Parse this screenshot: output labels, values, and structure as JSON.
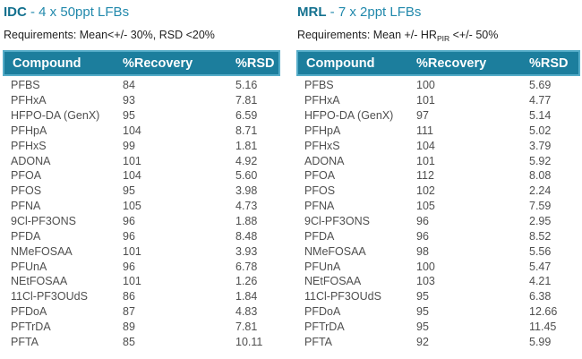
{
  "colors": {
    "header_bg": "#1C7E9D",
    "header_border": "#55ACC8",
    "header_text": "#FFFFFF",
    "title_accent": "#14718F",
    "title_rest": "#2289AC",
    "req_text": "#222222",
    "body_text": "#4F4F4F"
  },
  "columns": [
    "Compound",
    "%Recovery",
    "%RSD"
  ],
  "tables": [
    {
      "id": "idc",
      "title_acronym": "IDC",
      "title_rest": " - 4 x 50ppt LFBs",
      "requirements_pre": "Requirements: Mean<+/- 30%, RSD <20%",
      "requirements_sub": "",
      "requirements_post": "",
      "rows": [
        [
          "PFBS",
          "84",
          "5.16"
        ],
        [
          "PFHxA",
          "93",
          "7.81"
        ],
        [
          "HFPO-DA (GenX)",
          "95",
          "6.59"
        ],
        [
          "PFHpA",
          "104",
          "8.71"
        ],
        [
          "PFHxS",
          "99",
          "1.81"
        ],
        [
          "ADONA",
          "101",
          "4.92"
        ],
        [
          "PFOA",
          "104",
          "5.60"
        ],
        [
          "PFOS",
          "95",
          "3.98"
        ],
        [
          "PFNA",
          "105",
          "4.73"
        ],
        [
          "9Cl-PF3ONS",
          "96",
          "1.88"
        ],
        [
          "PFDA",
          "96",
          "8.48"
        ],
        [
          "NMeFOSAA",
          "101",
          "3.93"
        ],
        [
          "PFUnA",
          "96",
          "6.78"
        ],
        [
          "NEtFOSAA",
          "101",
          "1.26"
        ],
        [
          "11Cl-PF3OUdS",
          "86",
          "1.84"
        ],
        [
          "PFDoA",
          "87",
          "4.83"
        ],
        [
          "PFTrDA",
          "89",
          "7.81"
        ],
        [
          "PFTA",
          "85",
          "10.11"
        ]
      ]
    },
    {
      "id": "mrl",
      "title_acronym": "MRL",
      "title_rest": " - 7 x 2ppt LFBs",
      "requirements_pre": "Requirements: Mean +/- HR",
      "requirements_sub": "PIR",
      "requirements_post": " <+/- 50%",
      "rows": [
        [
          "PFBS",
          "100",
          "5.69"
        ],
        [
          "PFHxA",
          "101",
          "4.77"
        ],
        [
          "HFPO-DA (GenX)",
          "97",
          "5.14"
        ],
        [
          "PFHpA",
          "111",
          "5.02"
        ],
        [
          "PFHxS",
          "104",
          "3.79"
        ],
        [
          "ADONA",
          "101",
          "5.92"
        ],
        [
          "PFOA",
          "112",
          "8.08"
        ],
        [
          "PFOS",
          "102",
          "2.24"
        ],
        [
          "PFNA",
          "105",
          "7.59"
        ],
        [
          "9Cl-PF3ONS",
          "96",
          "2.95"
        ],
        [
          "PFDA",
          "96",
          "8.52"
        ],
        [
          "NMeFOSAA",
          "98",
          "5.56"
        ],
        [
          "PFUnA",
          "100",
          "5.47"
        ],
        [
          "NEtFOSAA",
          "103",
          "4.21"
        ],
        [
          "11Cl-PF3OUdS",
          "95",
          "6.38"
        ],
        [
          "PFDoA",
          "95",
          "12.66"
        ],
        [
          "PFTrDA",
          "95",
          "11.45"
        ],
        [
          "PFTA",
          "92",
          "5.99"
        ]
      ]
    }
  ]
}
